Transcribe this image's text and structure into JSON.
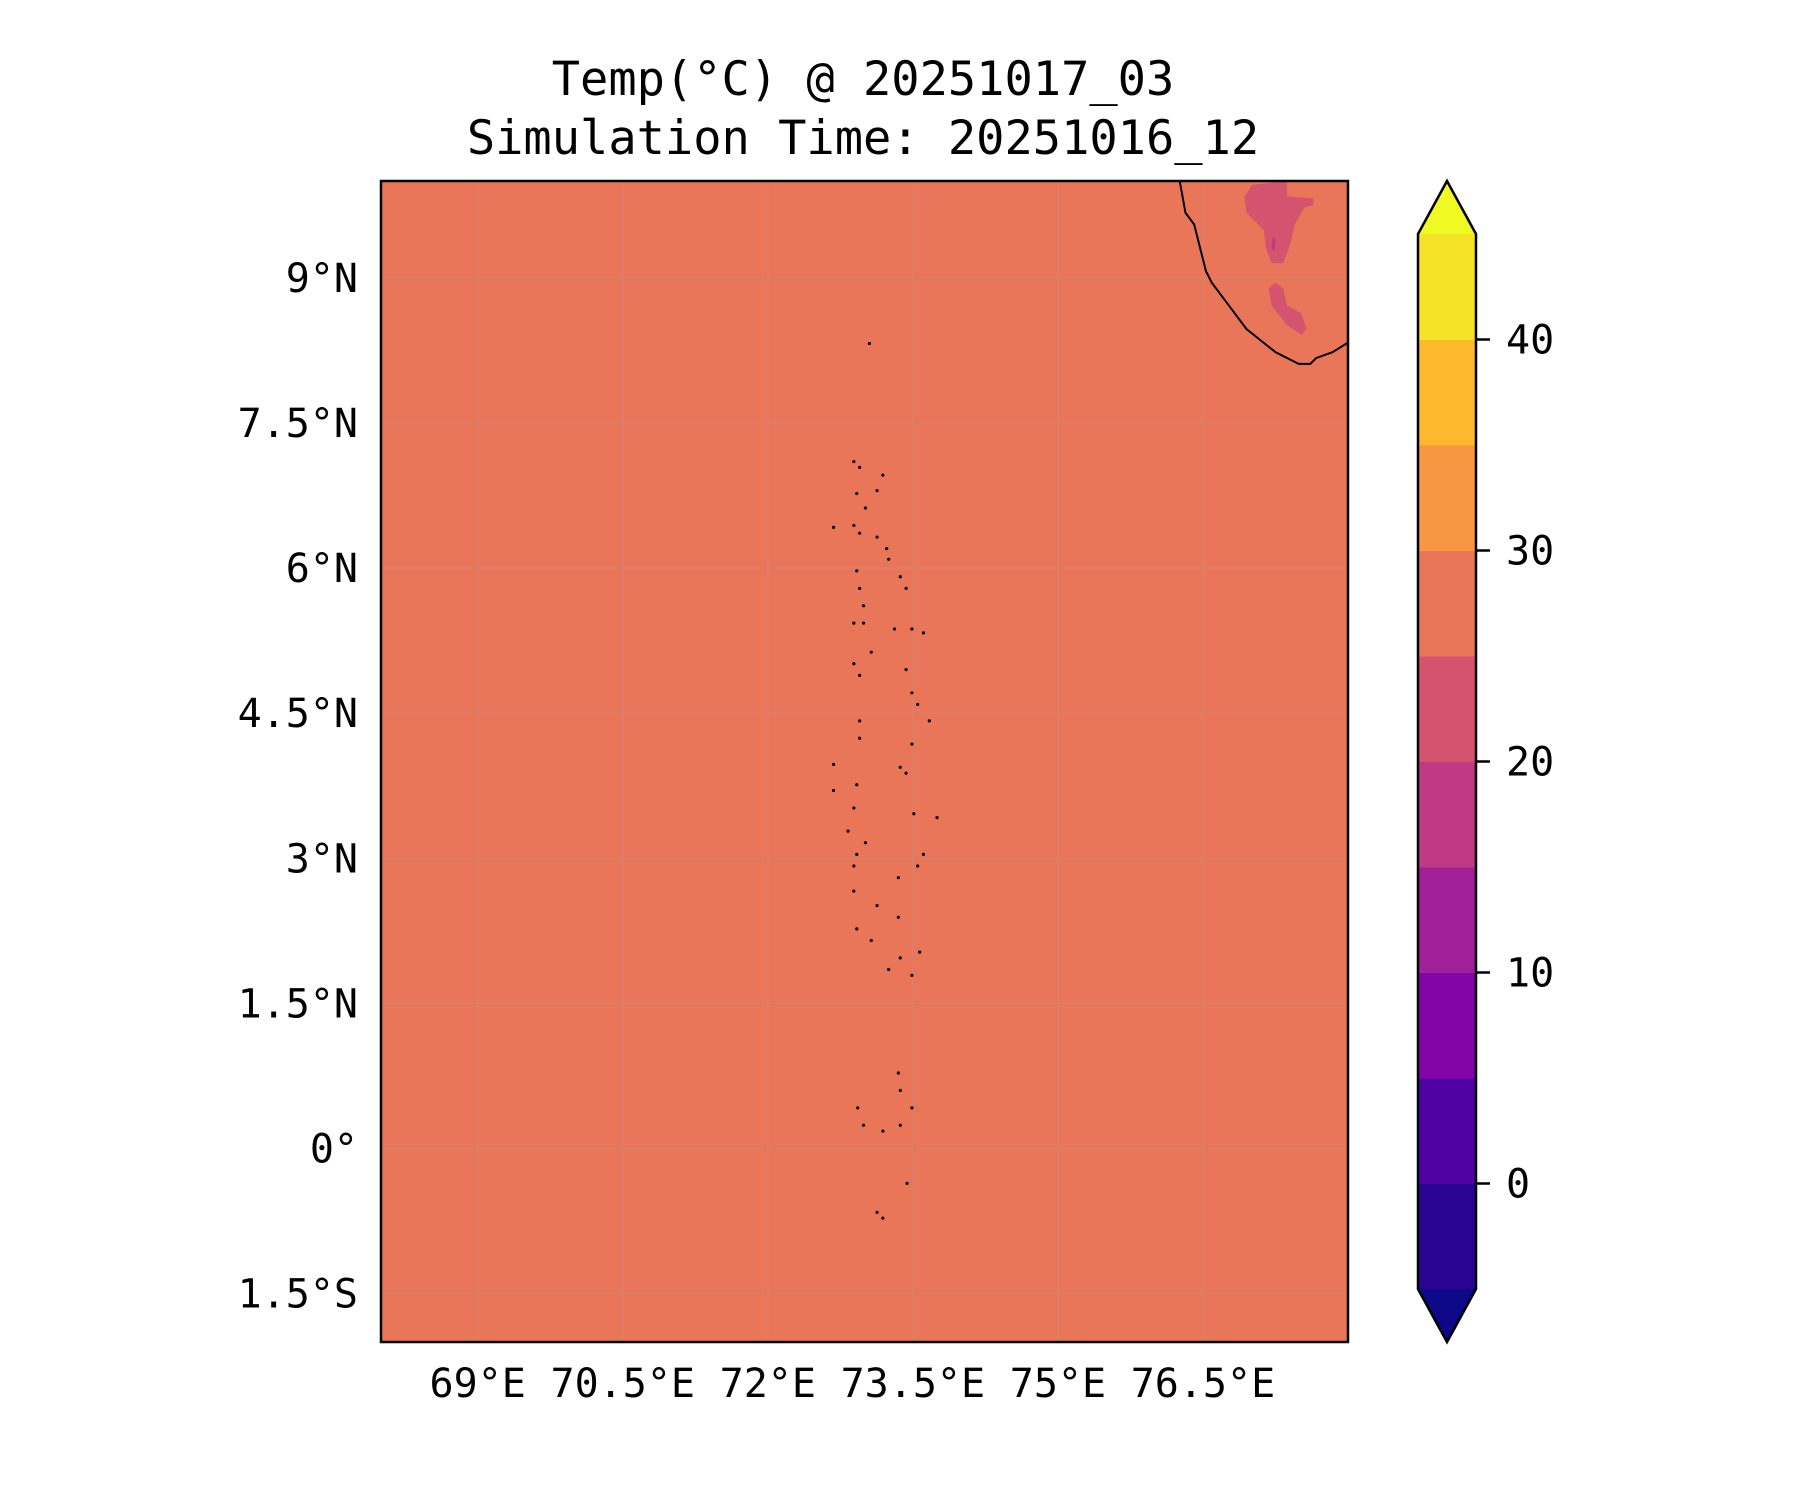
{
  "chart_data": {
    "type": "heatmap",
    "title_line1": "Temp(°C) @ 20251017_03",
    "title_line2": "Simulation Time: 20251016_12",
    "xlim": [
      68,
      78
    ],
    "ylim": [
      -2,
      10
    ],
    "x_ticks": [
      69,
      70.5,
      72,
      73.5,
      75,
      76.5
    ],
    "x_tick_labels": [
      "69°E",
      "70.5°E",
      "72°E",
      "73.5°E",
      "75°E",
      "76.5°E"
    ],
    "y_ticks": [
      9,
      7.5,
      6,
      4.5,
      3,
      1.5,
      0,
      -1.5
    ],
    "y_tick_labels": [
      "9°N",
      "7.5°N",
      "6°N",
      "4.5°N",
      "3°N",
      "1.5°N",
      "0°",
      "1.5°S"
    ],
    "grid": true,
    "background_level": [
      25,
      30
    ],
    "colorbar": {
      "levels": [
        -5,
        0,
        5,
        10,
        15,
        20,
        25,
        30,
        35,
        40,
        45
      ],
      "colors": [
        "#2a0593",
        "#5102a3",
        "#8305a7",
        "#a21f9a",
        "#bf3984",
        "#d5536f",
        "#ea7659",
        "#f89641",
        "#fdb82e",
        "#f5e325"
      ],
      "extend_min_color": "#0d0887",
      "extend_max_color": "#f0f921",
      "ticks": [
        0,
        10,
        20,
        30,
        40
      ],
      "tick_labels": [
        "0",
        "10",
        "20",
        "30",
        "40"
      ],
      "placement": "right"
    },
    "contour_regions_20_25": [
      [
        [
          77.01,
          9.96
        ],
        [
          77.37,
          10
        ],
        [
          77.37,
          9.84
        ],
        [
          77.64,
          9.82
        ],
        [
          77.64,
          9.75
        ],
        [
          77.55,
          9.73
        ],
        [
          77.45,
          9.55
        ],
        [
          77.4,
          9.34
        ],
        [
          77.33,
          9.15
        ],
        [
          77.21,
          9.15
        ],
        [
          77.15,
          9.31
        ],
        [
          77.13,
          9.49
        ],
        [
          76.95,
          9.67
        ],
        [
          76.93,
          9.84
        ]
      ],
      [
        [
          77.25,
          8.95
        ],
        [
          77.33,
          8.89
        ],
        [
          77.37,
          8.71
        ],
        [
          77.52,
          8.63
        ],
        [
          77.57,
          8.47
        ],
        [
          77.52,
          8.41
        ],
        [
          77.37,
          8.51
        ],
        [
          77.21,
          8.71
        ],
        [
          77.18,
          8.89
        ]
      ]
    ],
    "contour_regions_15_20": [
      [
        [
          77.22,
          9.42
        ],
        [
          77.25,
          9.4
        ],
        [
          77.24,
          9.28
        ],
        [
          77.21,
          9.3
        ]
      ]
    ],
    "coastline": [
      [
        76.26,
        10
      ],
      [
        76.32,
        9.67
      ],
      [
        76.41,
        9.55
      ],
      [
        76.53,
        9.07
      ],
      [
        76.59,
        8.95
      ],
      [
        76.77,
        8.71
      ],
      [
        76.95,
        8.47
      ],
      [
        77.25,
        8.23
      ],
      [
        77.49,
        8.11
      ],
      [
        77.61,
        8.11
      ],
      [
        77.67,
        8.17
      ],
      [
        77.84,
        8.23
      ],
      [
        78.0,
        8.33
      ]
    ],
    "islands": [
      [
        73.05,
        8.32
      ],
      [
        72.89,
        7.1
      ],
      [
        72.95,
        7.04
      ],
      [
        73.19,
        6.96
      ],
      [
        73.13,
        6.8
      ],
      [
        72.92,
        6.77
      ],
      [
        73.01,
        6.62
      ],
      [
        72.89,
        6.44
      ],
      [
        72.95,
        6.36
      ],
      [
        73.13,
        6.32
      ],
      [
        73.23,
        6.2
      ],
      [
        73.25,
        6.09
      ],
      [
        72.68,
        6.42
      ],
      [
        72.92,
        5.97
      ],
      [
        72.95,
        5.79
      ],
      [
        72.99,
        5.61
      ],
      [
        72.89,
        5.43
      ],
      [
        72.99,
        5.43
      ],
      [
        73.07,
        5.13
      ],
      [
        72.89,
        5.01
      ],
      [
        72.95,
        4.89
      ],
      [
        73.37,
        5.91
      ],
      [
        73.43,
        5.79
      ],
      [
        73.31,
        5.37
      ],
      [
        73.49,
        5.37
      ],
      [
        73.61,
        5.33
      ],
      [
        73.43,
        4.95
      ],
      [
        73.49,
        4.71
      ],
      [
        73.55,
        4.59
      ],
      [
        73.67,
        4.42
      ],
      [
        73.49,
        4.18
      ],
      [
        73.37,
        3.94
      ],
      [
        73.43,
        3.88
      ],
      [
        72.95,
        4.42
      ],
      [
        72.95,
        4.24
      ],
      [
        72.68,
        3.97
      ],
      [
        72.68,
        3.7
      ],
      [
        72.92,
        3.76
      ],
      [
        72.89,
        3.52
      ],
      [
        72.83,
        3.28
      ],
      [
        73.01,
        3.16
      ],
      [
        72.92,
        3.04
      ],
      [
        72.89,
        2.92
      ],
      [
        72.89,
        2.66
      ],
      [
        73.13,
        2.51
      ],
      [
        73.35,
        2.39
      ],
      [
        73.35,
        2.8
      ],
      [
        73.55,
        2.92
      ],
      [
        73.61,
        3.04
      ],
      [
        73.51,
        3.46
      ],
      [
        73.75,
        3.42
      ],
      [
        72.92,
        2.27
      ],
      [
        73.07,
        2.15
      ],
      [
        73.25,
        1.85
      ],
      [
        73.37,
        1.97
      ],
      [
        73.49,
        1.79
      ],
      [
        73.57,
        2.03
      ],
      [
        73.35,
        0.78
      ],
      [
        73.37,
        0.6
      ],
      [
        72.93,
        0.42
      ],
      [
        72.99,
        0.24
      ],
      [
        73.19,
        0.18
      ],
      [
        73.37,
        0.24
      ],
      [
        73.49,
        0.42
      ],
      [
        73.44,
        -0.36
      ],
      [
        73.13,
        -0.66
      ],
      [
        73.19,
        -0.72
      ]
    ]
  }
}
